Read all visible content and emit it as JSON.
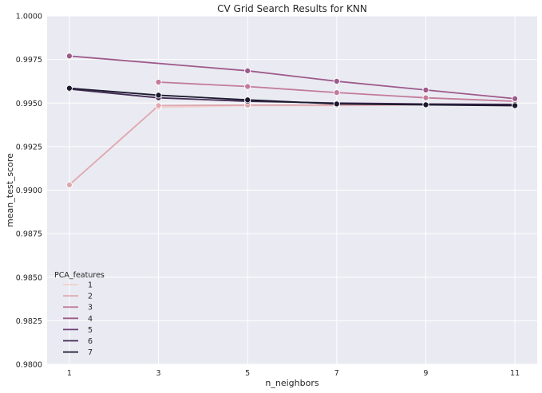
{
  "chart_data": {
    "type": "line",
    "title": "CV Grid Search Results for KNN",
    "xlabel": "n_neighbors",
    "ylabel": "mean_test_score",
    "x": [
      1,
      3,
      5,
      7,
      9,
      11
    ],
    "xticks": [
      "1",
      "3",
      "5",
      "7",
      "9",
      "11"
    ],
    "ylim": [
      0.98,
      1.0
    ],
    "yticks": [
      "0.9800",
      "0.9825",
      "0.9850",
      "0.9875",
      "0.9900",
      "0.9925",
      "0.9950",
      "0.9975",
      "1.0000"
    ],
    "grid": true,
    "legend": {
      "title": "PCA_features",
      "placement": "lower-left"
    },
    "series": [
      {
        "name": "1",
        "color": "#f1d1cf",
        "values": [
          null,
          0.99475,
          0.99485,
          0.99485,
          0.9949,
          0.9949
        ]
      },
      {
        "name": "2",
        "color": "#e0a8ae",
        "values": [
          0.9903,
          0.99485,
          0.99488,
          0.99488,
          0.9949,
          0.9949
        ]
      },
      {
        "name": "3",
        "color": "#c27c9b",
        "values": [
          null,
          0.9962,
          0.99595,
          0.9956,
          0.9953,
          0.9951
        ]
      },
      {
        "name": "4",
        "color": "#9d5a8a",
        "values": [
          0.9977,
          null,
          0.99685,
          0.99625,
          0.99575,
          0.99525
        ]
      },
      {
        "name": "5",
        "color": "#6e3f78",
        "values": [
          null,
          null,
          null,
          null,
          null,
          null
        ]
      },
      {
        "name": "6",
        "color": "#412a53",
        "values": [
          0.9958,
          0.9953,
          0.9951,
          0.995,
          0.99495,
          0.99492
        ]
      },
      {
        "name": "7",
        "color": "#1b1a2e",
        "values": [
          0.99585,
          0.99545,
          0.99518,
          0.99495,
          0.9949,
          0.99485
        ]
      }
    ]
  }
}
